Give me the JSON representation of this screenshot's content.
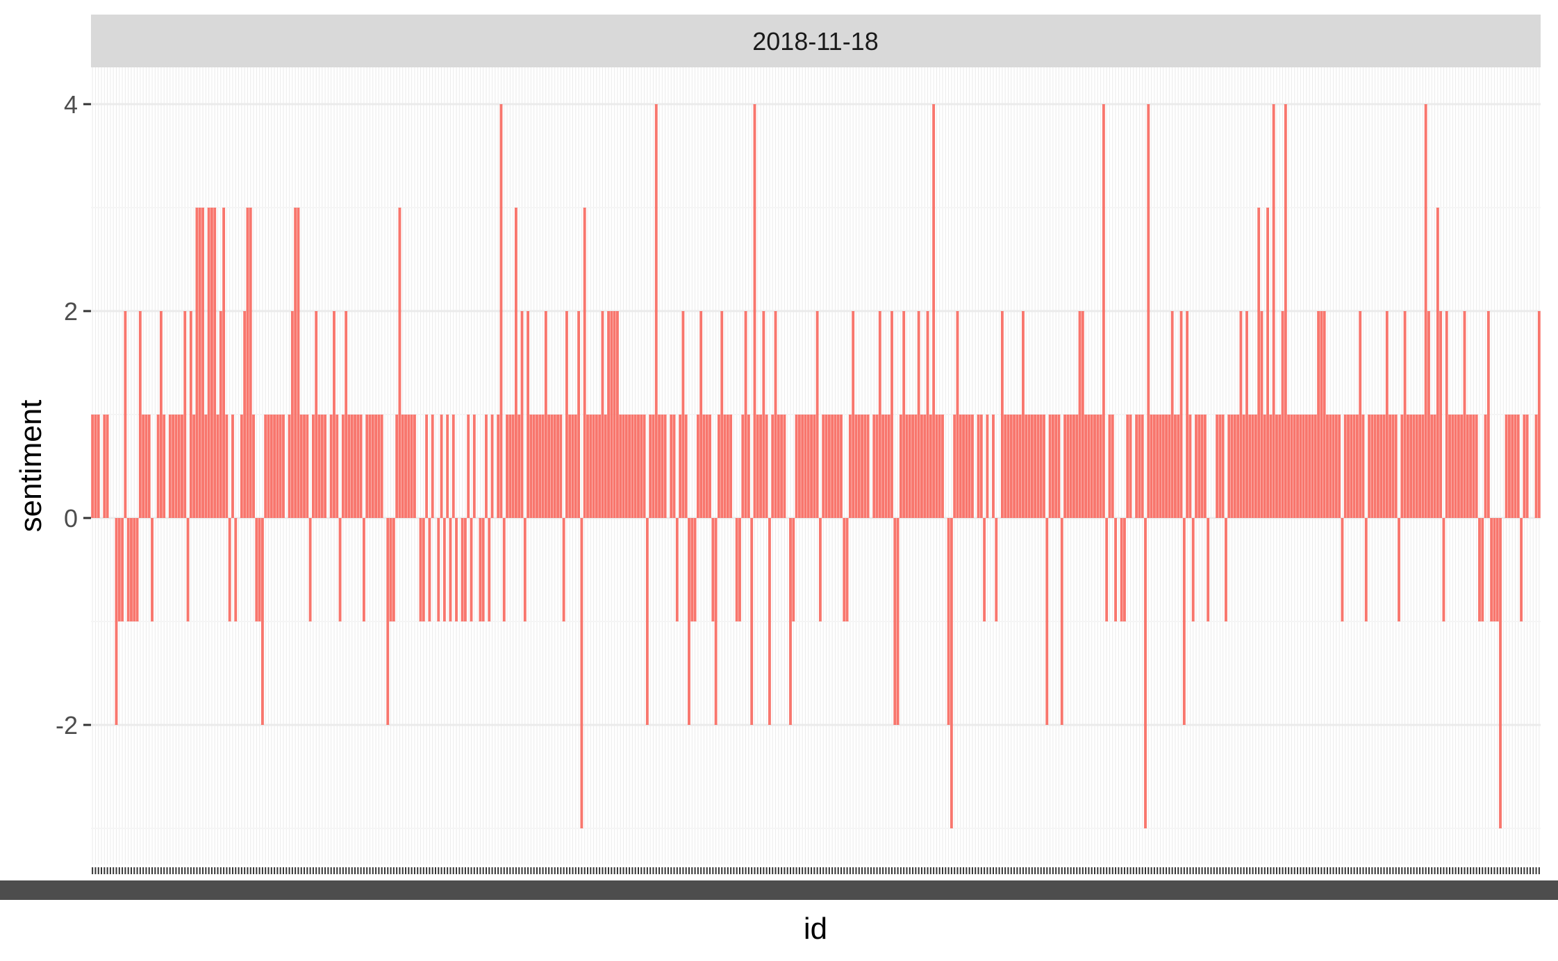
{
  "chart_data": {
    "type": "bar",
    "facet_label": "2018-11-18",
    "xlabel": "id",
    "ylabel": "sentiment",
    "ylim": [
      -3.2,
      4.2
    ],
    "y_ticks": [
      4,
      2,
      0,
      -2
    ],
    "y_tick_labels": [
      "4",
      "2",
      "0",
      "-2"
    ],
    "x_tick_labels_visible": false,
    "grid": true,
    "legend": "none",
    "colors": {
      "bar": "#f8766d",
      "panel_background": "#ffffff",
      "grid_major": "#ebebeb",
      "grid_minor": "#f5f5f5",
      "strip_background": "#d9d9d9",
      "x_axis_band": "#4d4d4d",
      "text": "#1a1a1a",
      "tick_text": "#4d4d4d"
    },
    "values": [
      1,
      1,
      1,
      0,
      1,
      1,
      0,
      0,
      -2,
      -1,
      -1,
      2,
      -1,
      -1,
      -1,
      -1,
      2,
      1,
      1,
      1,
      -1,
      0,
      1,
      2,
      1,
      0,
      1,
      1,
      1,
      1,
      1,
      2,
      -1,
      2,
      1,
      3,
      3,
      3,
      1,
      3,
      3,
      3,
      1,
      2,
      3,
      1,
      -1,
      1,
      -1,
      0,
      1,
      2,
      3,
      3,
      1,
      -1,
      -1,
      -2,
      1,
      1,
      1,
      1,
      1,
      1,
      1,
      0,
      1,
      2,
      3,
      3,
      1,
      1,
      1,
      -1,
      1,
      2,
      1,
      1,
      1,
      0,
      1,
      2,
      1,
      -1,
      1,
      2,
      1,
      1,
      1,
      1,
      1,
      -1,
      1,
      1,
      1,
      1,
      1,
      1,
      0,
      -2,
      -1,
      -1,
      1,
      3,
      1,
      1,
      1,
      1,
      1,
      0,
      -1,
      -1,
      1,
      -1,
      1,
      0,
      -1,
      1,
      -1,
      1,
      -1,
      1,
      -1,
      0,
      -1,
      -1,
      1,
      -1,
      1,
      0,
      -1,
      -1,
      1,
      -1,
      1,
      0,
      1,
      4,
      -1,
      1,
      1,
      1,
      3,
      1,
      2,
      -1,
      2,
      1,
      1,
      1,
      1,
      1,
      2,
      1,
      1,
      1,
      1,
      1,
      -1,
      2,
      1,
      1,
      1,
      2,
      -3,
      3,
      1,
      1,
      1,
      1,
      1,
      2,
      1,
      2,
      2,
      2,
      2,
      1,
      1,
      1,
      1,
      1,
      1,
      1,
      1,
      1,
      -2,
      1,
      1,
      4,
      1,
      1,
      1,
      0,
      1,
      1,
      -1,
      1,
      2,
      1,
      -2,
      -1,
      -1,
      1,
      2,
      1,
      1,
      1,
      -1,
      -2,
      1,
      2,
      1,
      1,
      1,
      0,
      -1,
      -1,
      1,
      2,
      1,
      -2,
      4,
      1,
      1,
      2,
      1,
      -2,
      1,
      2,
      1,
      1,
      1,
      0,
      -2,
      -1,
      1,
      1,
      1,
      1,
      1,
      1,
      1,
      2,
      -1,
      1,
      1,
      1,
      1,
      1,
      1,
      1,
      -1,
      -1,
      1,
      2,
      1,
      1,
      1,
      1,
      1,
      0,
      1,
      1,
      2,
      1,
      1,
      1,
      2,
      -2,
      -2,
      1,
      2,
      1,
      1,
      1,
      1,
      2,
      1,
      1,
      2,
      1,
      4,
      1,
      1,
      1,
      0,
      -2,
      -3,
      1,
      2,
      1,
      1,
      1,
      1,
      1,
      0,
      1,
      1,
      -1,
      1,
      0,
      1,
      -1,
      0,
      2,
      1,
      1,
      1,
      1,
      1,
      1,
      2,
      1,
      1,
      1,
      1,
      1,
      1,
      1,
      -2,
      1,
      1,
      1,
      1,
      -2,
      1,
      1,
      1,
      1,
      1,
      2,
      2,
      1,
      1,
      1,
      1,
      1,
      1,
      4,
      -1,
      1,
      1,
      -1,
      0,
      -1,
      -1,
      1,
      1,
      0,
      1,
      1,
      1,
      -3,
      4,
      1,
      1,
      1,
      1,
      1,
      1,
      1,
      2,
      1,
      1,
      2,
      -2,
      2,
      1,
      -1,
      1,
      1,
      1,
      1,
      -1,
      0,
      0,
      1,
      1,
      1,
      -1,
      1,
      1,
      1,
      1,
      2,
      1,
      2,
      1,
      1,
      1,
      3,
      2,
      1,
      3,
      1,
      4,
      1,
      1,
      2,
      4,
      1,
      1,
      1,
      1,
      1,
      1,
      1,
      1,
      1,
      1,
      2,
      2,
      2,
      1,
      1,
      1,
      1,
      1,
      -1,
      1,
      1,
      1,
      1,
      1,
      2,
      1,
      -1,
      1,
      1,
      1,
      1,
      1,
      1,
      2,
      1,
      1,
      1,
      -1,
      1,
      2,
      1,
      1,
      1,
      1,
      1,
      1,
      4,
      2,
      1,
      1,
      3,
      2,
      -1,
      2,
      1,
      1,
      1,
      1,
      1,
      2,
      1,
      1,
      1,
      1,
      -1,
      -1,
      1,
      2,
      -1,
      -1,
      -1,
      -3,
      0,
      1,
      1,
      1,
      1,
      1,
      -1,
      1,
      1,
      0,
      0,
      1,
      2
    ]
  }
}
